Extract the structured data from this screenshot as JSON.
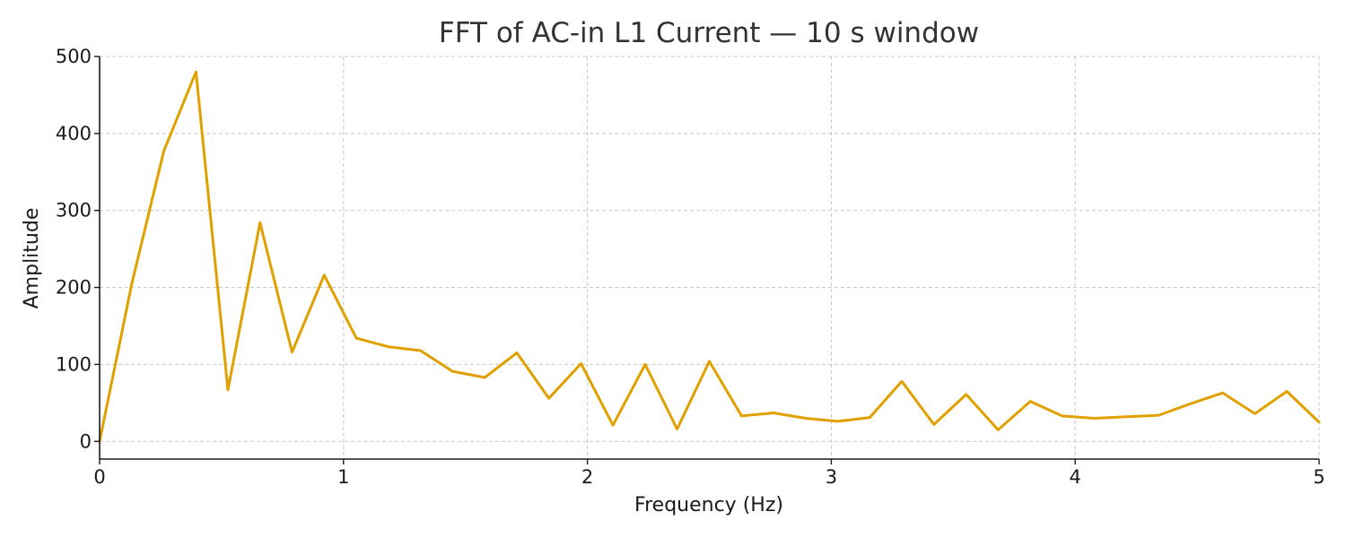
{
  "chart_data": {
    "type": "line",
    "title": "FFT of AC-in L1 Current — 10 s window",
    "xlabel": "Frequency (Hz)",
    "ylabel": "Amplitude",
    "xlim": [
      0,
      5
    ],
    "ylim": [
      -23,
      500
    ],
    "x_ticks": [
      "0",
      "1",
      "2",
      "3",
      "4",
      "5"
    ],
    "y_ticks": [
      "0",
      "100",
      "200",
      "300",
      "400",
      "500"
    ],
    "grid": true,
    "series": [
      {
        "color": "#e0a000",
        "points": [
          [
            0.0,
            0
          ],
          [
            0.132,
            205
          ],
          [
            0.263,
            377
          ],
          [
            0.395,
            480
          ],
          [
            0.526,
            67
          ],
          [
            0.658,
            284
          ],
          [
            0.789,
            116
          ],
          [
            0.921,
            216
          ],
          [
            1.053,
            134
          ],
          [
            1.184,
            123
          ],
          [
            1.316,
            118
          ],
          [
            1.447,
            91
          ],
          [
            1.579,
            83
          ],
          [
            1.711,
            115
          ],
          [
            1.842,
            56
          ],
          [
            1.974,
            101
          ],
          [
            2.105,
            21
          ],
          [
            2.237,
            100
          ],
          [
            2.368,
            16
          ],
          [
            2.5,
            104
          ],
          [
            2.632,
            33
          ],
          [
            2.763,
            37
          ],
          [
            2.895,
            30
          ],
          [
            3.026,
            26
          ],
          [
            3.158,
            31
          ],
          [
            3.289,
            78
          ],
          [
            3.421,
            22
          ],
          [
            3.553,
            61
          ],
          [
            3.684,
            15
          ],
          [
            3.816,
            52
          ],
          [
            3.947,
            33
          ],
          [
            4.079,
            30
          ],
          [
            4.211,
            32
          ],
          [
            4.342,
            34
          ],
          [
            4.474,
            49
          ],
          [
            4.605,
            63
          ],
          [
            4.737,
            36
          ],
          [
            4.868,
            65
          ],
          [
            5.0,
            25
          ]
        ]
      }
    ]
  }
}
